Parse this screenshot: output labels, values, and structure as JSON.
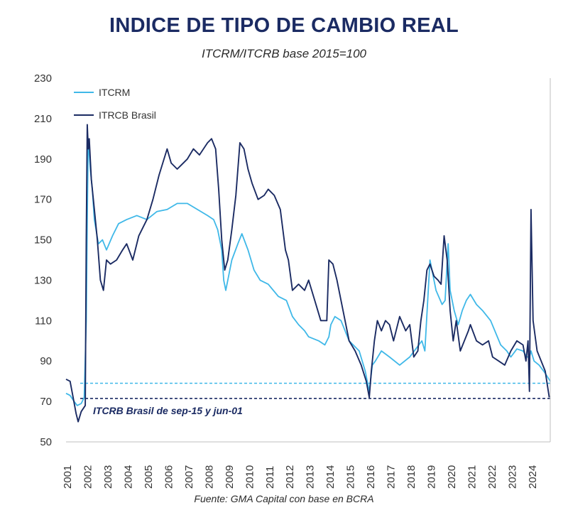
{
  "title": "INDICE DE TIPO DE CAMBIO REAL",
  "subtitle": "ITCRM/ITCRB base 2015=100",
  "source": "Fuente: GMA Capital con base en BCRA",
  "colors": {
    "itcrm": "#3fb8e8",
    "itcrb": "#1b2b63",
    "text": "#333333"
  },
  "chart_data": {
    "type": "line",
    "title": "INDICE DE TIPO DE CAMBIO REAL",
    "subtitle": "ITCRM/ITCRB base 2015=100",
    "xlabel": "",
    "ylabel": "",
    "xlim": [
      2001.0,
      2024.95
    ],
    "ylim": [
      50,
      230
    ],
    "yticks": [
      50,
      70,
      90,
      110,
      130,
      150,
      170,
      190,
      210,
      230
    ],
    "xticks": [
      "2001",
      "2002",
      "2003",
      "2004",
      "2005",
      "2006",
      "2007",
      "2008",
      "2009",
      "2010",
      "2011",
      "2012",
      "2013",
      "2014",
      "2015",
      "2016",
      "2017",
      "2018",
      "2019",
      "2020",
      "2021",
      "2022",
      "2023",
      "2024"
    ],
    "grid": false,
    "legend": "top-left",
    "series": [
      {
        "name": "ITCRM",
        "x": [
          2001.0,
          2001.2,
          2001.4,
          2001.55,
          2001.75,
          2001.9,
          2002.0,
          2002.05,
          2002.1,
          2002.2,
          2002.3,
          2002.4,
          2002.6,
          2002.8,
          2003.0,
          2003.3,
          2003.6,
          2004.0,
          2004.5,
          2005.0,
          2005.5,
          2006.0,
          2006.5,
          2007.0,
          2007.5,
          2008.0,
          2008.3,
          2008.5,
          2008.7,
          2008.8,
          2008.9,
          2009.2,
          2009.5,
          2009.7,
          2010.0,
          2010.3,
          2010.6,
          2011.0,
          2011.5,
          2011.9,
          2012.2,
          2012.5,
          2012.8,
          2013.0,
          2013.5,
          2013.8,
          2014.0,
          2014.1,
          2014.3,
          2014.6,
          2015.0,
          2015.5,
          2015.8,
          2016.0,
          2016.15,
          2016.3,
          2016.6,
          2017.0,
          2017.5,
          2018.0,
          2018.3,
          2018.6,
          2018.75,
          2019.0,
          2019.3,
          2019.6,
          2019.75,
          2019.9,
          2020.0,
          2020.2,
          2020.4,
          2020.6,
          2020.8,
          2021.0,
          2021.3,
          2021.6,
          2022.0,
          2022.5,
          2022.8,
          2023.0,
          2023.3,
          2023.6,
          2023.8,
          2023.92,
          2024.0,
          2024.15,
          2024.4,
          2024.7,
          2024.95
        ],
        "values": [
          74,
          73,
          70,
          68,
          69,
          72,
          110,
          160,
          200,
          185,
          175,
          160,
          148,
          150,
          145,
          152,
          158,
          160,
          162,
          160,
          164,
          165,
          168,
          168,
          165,
          162,
          160,
          155,
          145,
          130,
          125,
          140,
          148,
          153,
          145,
          135,
          130,
          128,
          122,
          120,
          112,
          108,
          105,
          102,
          100,
          98,
          102,
          108,
          112,
          110,
          100,
          95,
          85,
          75,
          88,
          90,
          95,
          92,
          88,
          92,
          96,
          100,
          95,
          140,
          125,
          118,
          120,
          148,
          125,
          115,
          108,
          115,
          120,
          123,
          118,
          115,
          110,
          98,
          95,
          92,
          96,
          95,
          92,
          92,
          95,
          90,
          88,
          84,
          80
        ]
      },
      {
        "name": "ITRCB Brasil",
        "x": [
          2001.0,
          2001.2,
          2001.35,
          2001.5,
          2001.6,
          2001.75,
          2001.95,
          2002.0,
          2002.05,
          2002.1,
          2002.15,
          2002.25,
          2002.4,
          2002.55,
          2002.7,
          2002.85,
          2003.0,
          2003.2,
          2003.5,
          2003.8,
          2004.0,
          2004.3,
          2004.6,
          2005.0,
          2005.3,
          2005.6,
          2006.0,
          2006.2,
          2006.5,
          2007.0,
          2007.3,
          2007.6,
          2008.0,
          2008.2,
          2008.4,
          2008.55,
          2008.7,
          2008.85,
          2009.0,
          2009.2,
          2009.4,
          2009.6,
          2009.8,
          2010.0,
          2010.2,
          2010.5,
          2010.8,
          2011.0,
          2011.3,
          2011.6,
          2011.85,
          2012.0,
          2012.2,
          2012.5,
          2012.8,
          2013.0,
          2013.3,
          2013.6,
          2013.9,
          2014.0,
          2014.2,
          2014.4,
          2014.6,
          2014.8,
          2015.0,
          2015.3,
          2015.6,
          2015.85,
          2016.0,
          2016.1,
          2016.25,
          2016.4,
          2016.6,
          2016.8,
          2017.0,
          2017.2,
          2017.5,
          2017.8,
          2018.0,
          2018.2,
          2018.4,
          2018.55,
          2018.7,
          2018.85,
          2019.0,
          2019.2,
          2019.4,
          2019.55,
          2019.7,
          2019.85,
          2020.0,
          2020.15,
          2020.3,
          2020.5,
          2020.7,
          2020.9,
          2021.0,
          2021.3,
          2021.6,
          2021.9,
          2022.1,
          2022.4,
          2022.7,
          2023.0,
          2023.3,
          2023.6,
          2023.75,
          2023.85,
          2023.92,
          2024.0,
          2024.1,
          2024.3,
          2024.5,
          2024.7,
          2024.9
        ],
        "values": [
          81,
          80,
          72,
          64,
          60,
          65,
          68,
          150,
          207,
          195,
          200,
          180,
          165,
          150,
          130,
          125,
          140,
          138,
          140,
          145,
          148,
          140,
          152,
          160,
          170,
          182,
          195,
          188,
          185,
          190,
          195,
          192,
          198,
          200,
          195,
          175,
          150,
          135,
          140,
          155,
          172,
          198,
          195,
          185,
          178,
          170,
          172,
          175,
          172,
          165,
          145,
          140,
          125,
          128,
          125,
          130,
          120,
          110,
          110,
          140,
          138,
          130,
          120,
          110,
          100,
          95,
          88,
          80,
          72,
          85,
          100,
          110,
          105,
          110,
          108,
          100,
          112,
          105,
          108,
          92,
          95,
          110,
          120,
          135,
          138,
          132,
          130,
          128,
          152,
          140,
          115,
          100,
          110,
          95,
          100,
          105,
          108,
          100,
          98,
          100,
          92,
          90,
          88,
          95,
          100,
          98,
          90,
          100,
          75,
          165,
          110,
          95,
          90,
          85,
          72
        ]
      }
    ],
    "reference_lines": [
      {
        "label": "ITCRM",
        "value": 79,
        "style": "dashed"
      },
      {
        "label": "ITCRB Brasil",
        "value": 71.5,
        "style": "dashed"
      }
    ],
    "annotations": [
      "ITCRB Brasil de sep-15 y jun-01"
    ]
  }
}
